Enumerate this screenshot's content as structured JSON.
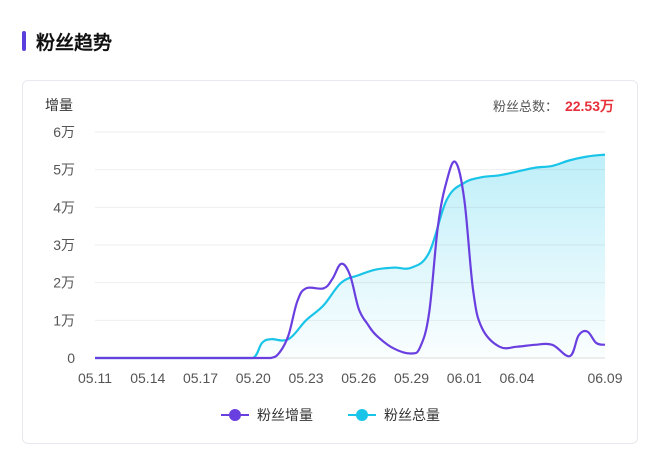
{
  "section": {
    "title": "粉丝趋势"
  },
  "summary": {
    "label": "粉丝总数：",
    "value": "22.53万"
  },
  "colors": {
    "accent": "#5b3fdc",
    "increase": "#6a3fe0",
    "total": "#18c4e8",
    "total_value": "#e8303a"
  },
  "chart_data": {
    "type": "line",
    "ylabel": "增量",
    "ylim": [
      0,
      60000
    ],
    "yticks": [
      0,
      10000,
      20000,
      30000,
      40000,
      50000,
      60000
    ],
    "ytick_labels": [
      "0",
      "1万",
      "2万",
      "3万",
      "4万",
      "5万",
      "6万"
    ],
    "x_tick_labels": [
      "05.11",
      "05.14",
      "05.17",
      "05.20",
      "05.23",
      "05.26",
      "05.29",
      "06.01",
      "06.04",
      "06.09"
    ],
    "x_tick_days": [
      0,
      3,
      6,
      9,
      12,
      15,
      18,
      21,
      24,
      29
    ],
    "grid": true,
    "legend_position": "bottom",
    "series": [
      {
        "name": "粉丝增量",
        "color": "#6a3fe0",
        "points": [
          [
            0,
            0
          ],
          [
            1,
            0
          ],
          [
            2,
            0
          ],
          [
            3,
            0
          ],
          [
            4,
            0
          ],
          [
            5,
            0
          ],
          [
            6,
            0
          ],
          [
            7,
            0
          ],
          [
            8,
            0
          ],
          [
            9,
            0
          ],
          [
            10,
            0
          ],
          [
            10.5,
            1500
          ],
          [
            11,
            6000
          ],
          [
            11.5,
            15000
          ],
          [
            12,
            18500
          ],
          [
            13,
            18500
          ],
          [
            13.5,
            21000
          ],
          [
            14,
            25000
          ],
          [
            14.5,
            22000
          ],
          [
            15,
            13000
          ],
          [
            15.5,
            9000
          ],
          [
            16,
            6000
          ],
          [
            17,
            2500
          ],
          [
            18,
            1200
          ],
          [
            18.5,
            3000
          ],
          [
            19,
            12000
          ],
          [
            19.5,
            35000
          ],
          [
            20,
            47000
          ],
          [
            20.5,
            52000
          ],
          [
            21,
            42000
          ],
          [
            21.5,
            18000
          ],
          [
            22,
            8000
          ],
          [
            23,
            3000
          ],
          [
            24,
            3000
          ],
          [
            25,
            3500
          ],
          [
            26,
            3500
          ],
          [
            27,
            500
          ],
          [
            27.5,
            6000
          ],
          [
            28,
            7000
          ],
          [
            28.5,
            4000
          ],
          [
            29,
            3500
          ]
        ]
      },
      {
        "name": "粉丝总量",
        "color": "#18c4e8",
        "points": [
          [
            0,
            0
          ],
          [
            1,
            0
          ],
          [
            2,
            0
          ],
          [
            3,
            0
          ],
          [
            4,
            0
          ],
          [
            5,
            0
          ],
          [
            6,
            0
          ],
          [
            7,
            0
          ],
          [
            8,
            0
          ],
          [
            9,
            0
          ],
          [
            9.5,
            4000
          ],
          [
            10,
            5000
          ],
          [
            11,
            5000
          ],
          [
            12,
            10000
          ],
          [
            13,
            14000
          ],
          [
            14,
            20000
          ],
          [
            15,
            22000
          ],
          [
            16,
            23500
          ],
          [
            17,
            24000
          ],
          [
            18,
            24000
          ],
          [
            19,
            28000
          ],
          [
            20,
            42000
          ],
          [
            21,
            46500
          ],
          [
            22,
            48000
          ],
          [
            23,
            48500
          ],
          [
            24,
            49500
          ],
          [
            25,
            50500
          ],
          [
            26,
            51000
          ],
          [
            27,
            52500
          ],
          [
            28,
            53500
          ],
          [
            29,
            54000
          ]
        ]
      }
    ]
  }
}
